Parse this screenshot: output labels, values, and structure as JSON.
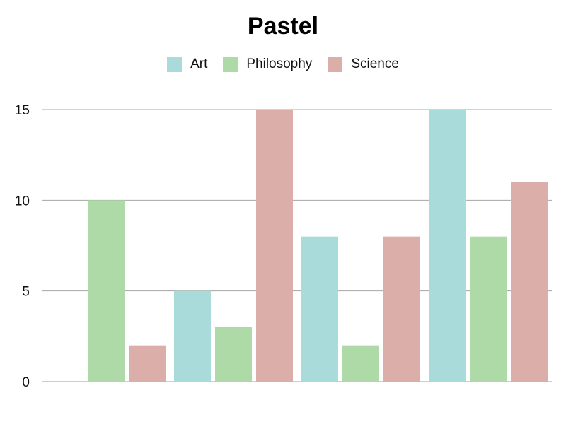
{
  "chart_data": {
    "type": "bar",
    "title": "Pastel",
    "xlabel": "",
    "ylabel": "",
    "categories": [
      "",
      "",
      "",
      ""
    ],
    "series": [
      {
        "name": "Art",
        "color": "#a8dbd9",
        "values": [
          0,
          5,
          8,
          15
        ]
      },
      {
        "name": "Philosophy",
        "color": "#addaa7",
        "values": [
          10,
          3,
          2,
          8
        ]
      },
      {
        "name": "Science",
        "color": "#dbaea9",
        "values": [
          2,
          15,
          8,
          11
        ]
      }
    ],
    "ylim": [
      0,
      15
    ],
    "yticks": [
      "0",
      "5",
      "10",
      "15"
    ],
    "grid": true,
    "legend_position": "top"
  }
}
